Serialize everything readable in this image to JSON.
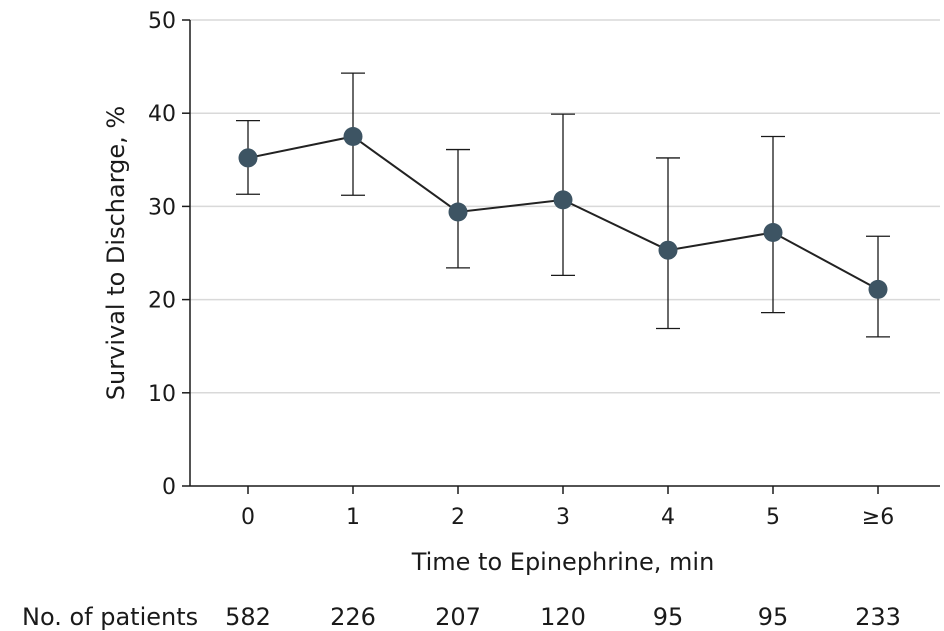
{
  "chart_data": {
    "type": "line",
    "xlabel": "Time to Epinephrine, min",
    "ylabel": "Survival to Discharge, %",
    "categories": [
      "0",
      "1",
      "2",
      "3",
      "4",
      "5",
      "≥6"
    ],
    "ylim": [
      0,
      50
    ],
    "yticks": [
      0,
      10,
      20,
      30,
      40,
      50
    ],
    "grid": true,
    "series": [
      {
        "values": [
          35.2,
          37.5,
          29.4,
          30.7,
          25.3,
          27.2,
          21.1
        ],
        "ci_lower": [
          31.3,
          31.2,
          23.4,
          22.6,
          16.9,
          18.6,
          16.0
        ],
        "ci_upper": [
          39.2,
          44.3,
          36.1,
          39.9,
          35.2,
          37.5,
          26.8
        ],
        "color": "#3d5463"
      }
    ],
    "patients": {
      "label": "No. of patients",
      "values": [
        "582",
        "226",
        "207",
        "120",
        "95",
        "95",
        "233"
      ]
    }
  }
}
